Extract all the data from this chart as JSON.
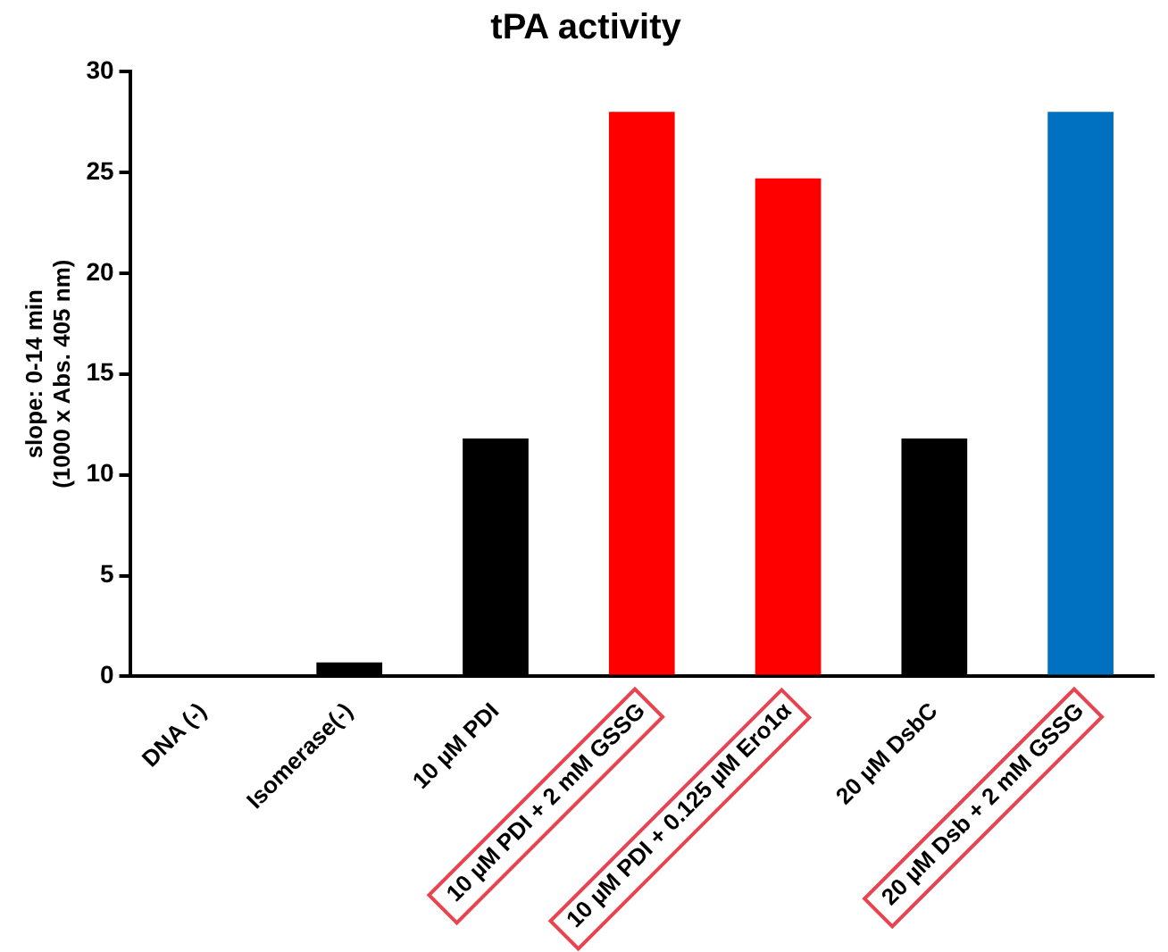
{
  "chart_data": {
    "type": "bar",
    "title": "tPA activity",
    "ylabel": "slope: 0-14 min\n(1000 x Abs. 405 nm)",
    "categories": [
      "DNA (-)",
      "Isomerase(-)",
      "10 µM PDI",
      "10 µM PDI + 2 mM GSSG",
      "10 µM PDI + 0.125 µM Ero1α",
      "20 µM DsbC",
      "20 µM Dsb + 2 mM GSSG"
    ],
    "values": [
      0,
      0.7,
      11.8,
      28,
      24.7,
      11.8,
      28
    ],
    "colors": [
      "#000000",
      "#000000",
      "#000000",
      "#ff0000",
      "#ff0000",
      "#000000",
      "#0070c0"
    ],
    "ylim": [
      0,
      30
    ],
    "yticks": [
      0,
      5,
      10,
      15,
      20,
      25,
      30
    ],
    "grid": false,
    "legend": false
  }
}
